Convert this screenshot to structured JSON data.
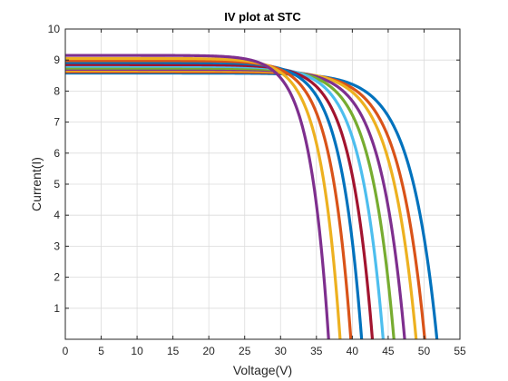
{
  "chart_data": {
    "type": "line",
    "title": "IV plot at STC",
    "xlabel": "Voltage(V)",
    "ylabel": "Current(I)",
    "xlim": [
      0,
      55
    ],
    "ylim": [
      0,
      10
    ],
    "xticks": [
      0,
      5,
      10,
      15,
      20,
      25,
      30,
      35,
      40,
      45,
      50,
      55
    ],
    "yticks": [
      1,
      2,
      3,
      4,
      5,
      6,
      7,
      8,
      9,
      10
    ],
    "grid": true,
    "series": [
      {
        "isc": 8.58,
        "voc": 51.8,
        "color": "#0072BD"
      },
      {
        "isc": 8.62,
        "voc": 50.1,
        "color": "#D95319"
      },
      {
        "isc": 8.66,
        "voc": 48.9,
        "color": "#EDB120"
      },
      {
        "isc": 8.7,
        "voc": 47.3,
        "color": "#7E2F8E"
      },
      {
        "isc": 8.74,
        "voc": 45.8,
        "color": "#77AC30"
      },
      {
        "isc": 8.8,
        "voc": 44.3,
        "color": "#4DBEEE"
      },
      {
        "isc": 8.85,
        "voc": 42.8,
        "color": "#A2142F"
      },
      {
        "isc": 8.92,
        "voc": 41.3,
        "color": "#0072BD"
      },
      {
        "isc": 8.98,
        "voc": 39.8,
        "color": "#D95319"
      },
      {
        "isc": 9.05,
        "voc": 38.3,
        "color": "#EDB120"
      },
      {
        "isc": 9.15,
        "voc": 36.7,
        "color": "#7E2F8E"
      }
    ]
  }
}
